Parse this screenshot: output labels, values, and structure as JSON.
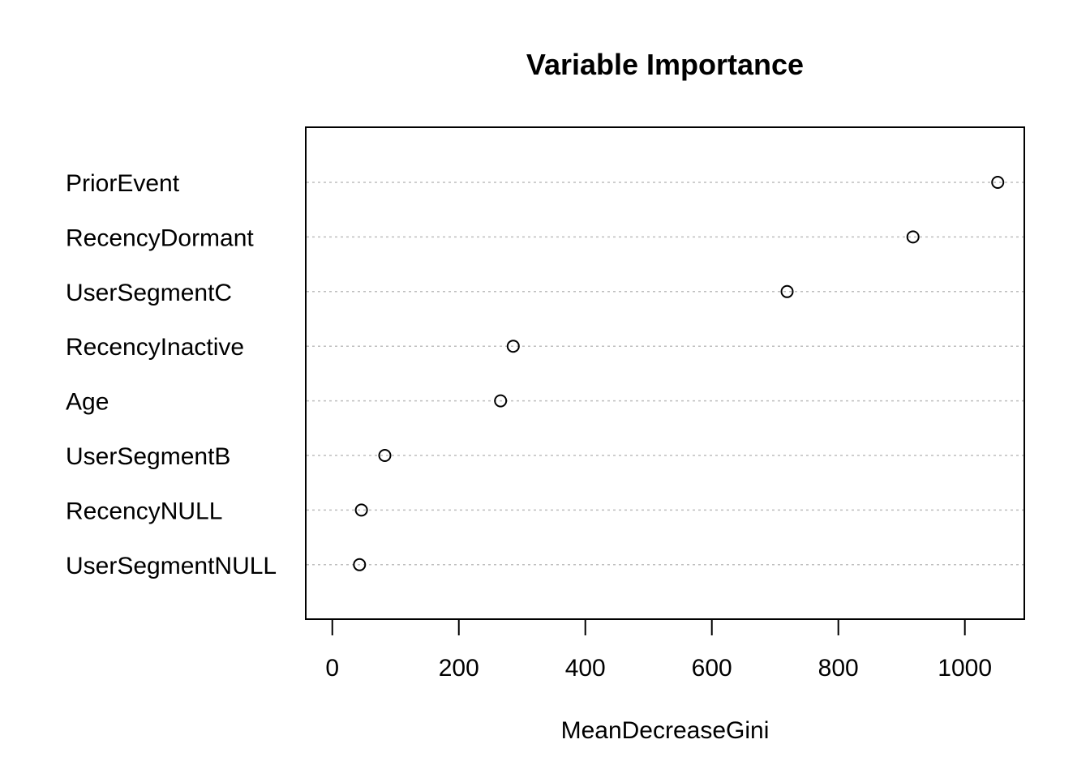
{
  "chart_data": {
    "type": "scatter",
    "subtype": "dotchart",
    "title": "Variable Importance",
    "xlabel": "MeanDecreaseGini",
    "ylabel": "",
    "xlim": [
      -42,
      1094
    ],
    "xticks": [
      0,
      200,
      400,
      600,
      800,
      1000
    ],
    "grid": "dotted horizontal guide lines",
    "categories": [
      "PriorEvent",
      "RecencyDormant",
      "UserSegmentC",
      "RecencyInactive",
      "Age",
      "UserSegmentB",
      "RecencyNULL",
      "UserSegmentNULL"
    ],
    "values": [
      1052,
      918,
      719,
      286,
      266,
      83,
      46,
      43
    ],
    "colors": {
      "points": "#000000",
      "guides": "#bebebe",
      "frame": "#000000"
    }
  }
}
